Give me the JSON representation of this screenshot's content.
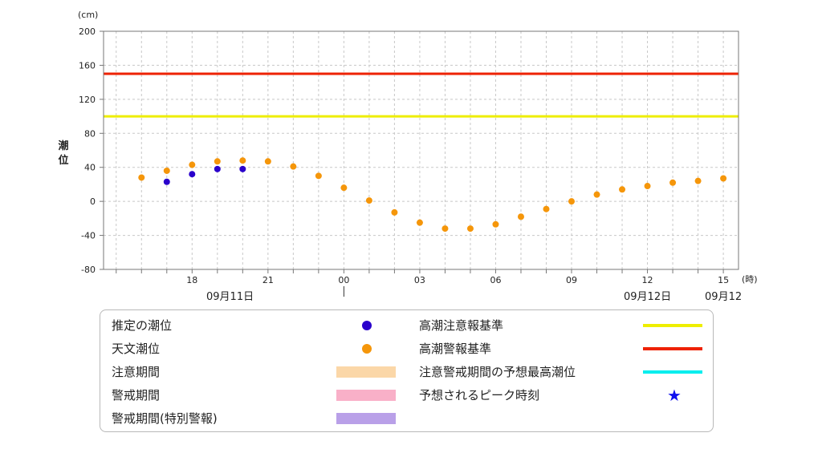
{
  "chart_data": {
    "type": "scatter",
    "y_unit": "(cm)",
    "y_label": "潮位",
    "x_unit": "(時)",
    "ylim": [
      -80,
      200
    ],
    "y_ticks": [
      200,
      160,
      120,
      80,
      40,
      0,
      -40,
      -80
    ],
    "x_range_hours_from_0911_00": [
      -9.5,
      15.6
    ],
    "x_ticks": [
      {
        "h": -6,
        "label": "18"
      },
      {
        "h": -3,
        "label": "21"
      },
      {
        "h": 0,
        "label": "00"
      },
      {
        "h": 3,
        "label": "03"
      },
      {
        "h": 6,
        "label": "06"
      },
      {
        "h": 9,
        "label": "09"
      },
      {
        "h": 12,
        "label": "12"
      },
      {
        "h": 15,
        "label": "15"
      }
    ],
    "date_labels": [
      {
        "h": -4.5,
        "label": "09月11日"
      },
      {
        "h": 12,
        "label": "09月12日"
      },
      {
        "h": 15,
        "label": "09月12"
      }
    ],
    "grid": true,
    "thresholds": [
      {
        "name": "高潮警報基準",
        "value": 150,
        "color": "#ee2200"
      },
      {
        "name": "高潮注意報基準",
        "value": 100,
        "color": "#eeee00"
      }
    ],
    "series": [
      {
        "name": "天文潮位",
        "color": "#f5960a",
        "x": [
          -8,
          -7,
          -6,
          -5,
          -4,
          -3,
          -2,
          -1,
          0,
          1,
          2,
          3,
          4,
          5,
          6,
          7,
          8,
          9,
          10,
          11,
          12,
          13,
          14,
          15
        ],
        "y": [
          28,
          36,
          43,
          47,
          48,
          47,
          41,
          30,
          16,
          1,
          -13,
          -25,
          -32,
          -32,
          -27,
          -18,
          -9,
          0,
          8,
          14,
          18,
          22,
          24,
          27
        ]
      },
      {
        "name": "推定の潮位",
        "color": "#2a00cc",
        "x": [
          -7,
          -6,
          -5,
          -4
        ],
        "y": [
          23,
          32,
          38,
          38
        ]
      }
    ]
  },
  "legend": {
    "left": [
      {
        "label": "推定の潮位",
        "kind": "dot",
        "color": "#2a00cc"
      },
      {
        "label": "天文潮位",
        "kind": "dot",
        "color": "#f5960a"
      },
      {
        "label": "注意期間",
        "kind": "bar",
        "color": "#fbd7a8"
      },
      {
        "label": "警戒期間",
        "kind": "bar",
        "color": "#f9b0c8"
      },
      {
        "label": "警戒期間(特別警報)",
        "kind": "bar",
        "color": "#b9a0e8"
      }
    ],
    "right": [
      {
        "label": "高潮注意報基準",
        "kind": "line",
        "color": "#eeee00"
      },
      {
        "label": "高潮警報基準",
        "kind": "line",
        "color": "#ee2200"
      },
      {
        "label": "注意警戒期間の予想最高潮位",
        "kind": "line",
        "color": "#00eeee"
      },
      {
        "label": "予想されるピーク時刻",
        "kind": "star",
        "color": "#1010ee",
        "glyph": "★"
      }
    ]
  }
}
